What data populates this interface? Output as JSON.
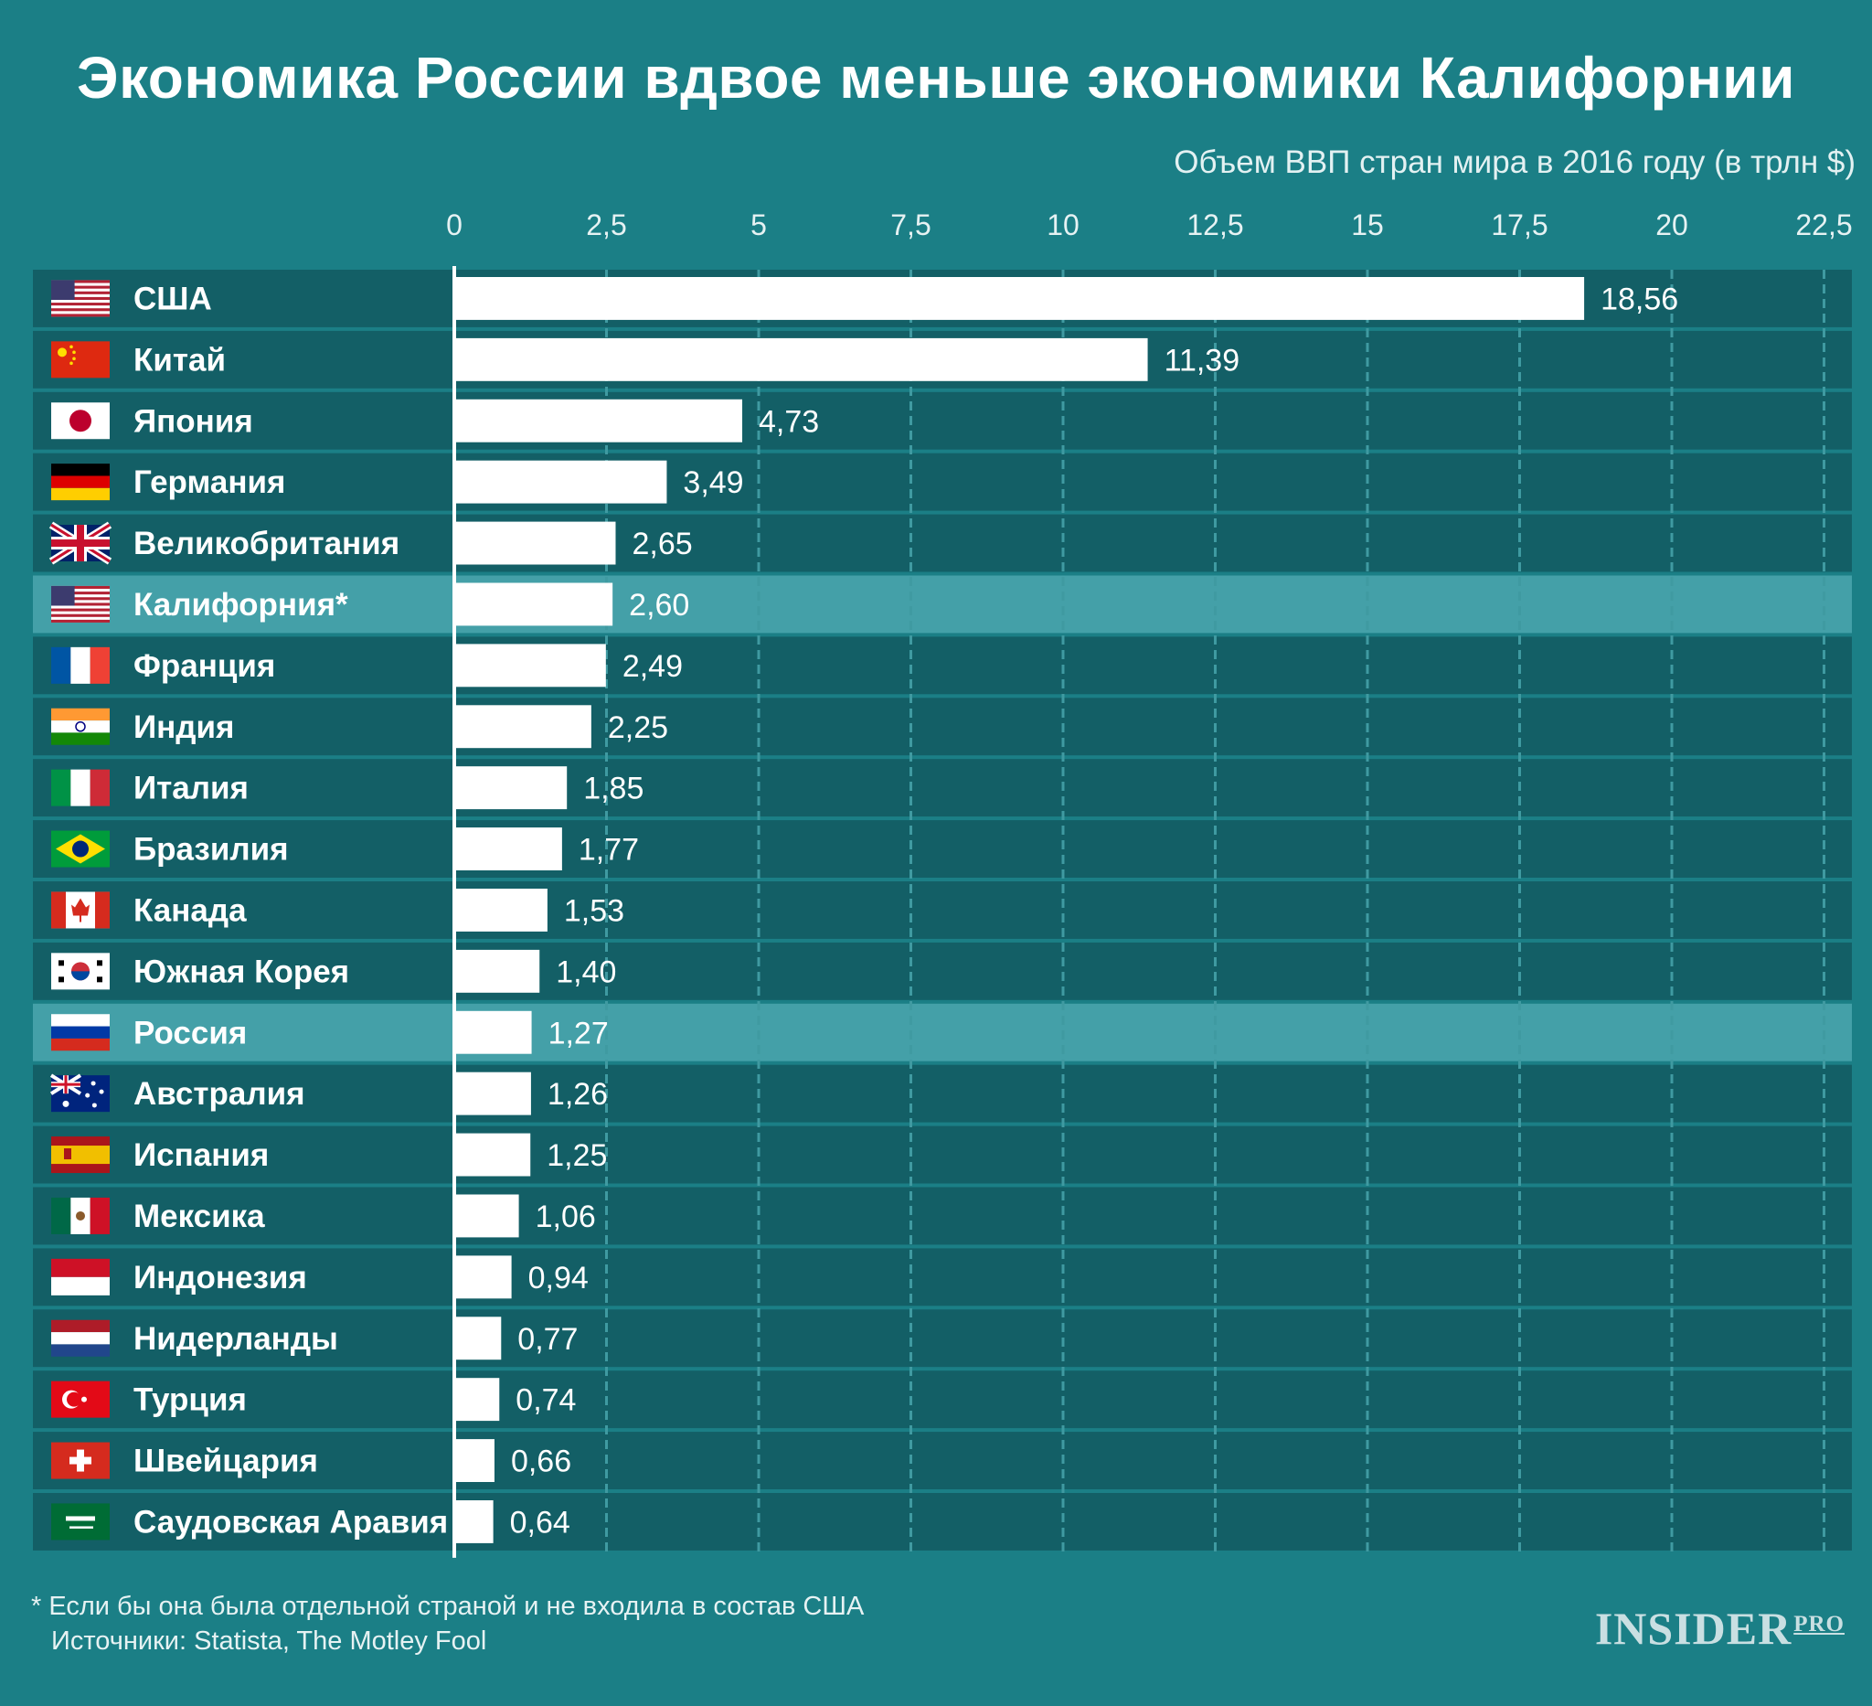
{
  "title": "Экономика России вдвое меньше экономики Калифорнии",
  "subtitle": "Объем ВВП стран мира в 2016 году (в трлн $)",
  "footnote": "* Если бы она была отдельной страной и не входила в состав США",
  "sources": "Источники: Statista, The Motley Fool",
  "logo": {
    "main": "INSIDER",
    "suffix": "PRO"
  },
  "colors": {
    "background": "#1b7f86",
    "row": "#135f66",
    "highlight_row": "#44a0a8",
    "bar": "#ffffff",
    "grid": "#3f9aa1"
  },
  "chart_data": {
    "type": "bar",
    "orientation": "horizontal",
    "xlim": [
      0,
      22.5
    ],
    "ticks": [
      0,
      2.5,
      5,
      7.5,
      10,
      12.5,
      15,
      17.5,
      20,
      22.5
    ],
    "tick_labels": [
      "0",
      "2,5",
      "5",
      "7,5",
      "10",
      "12,5",
      "15",
      "17,5",
      "20",
      "22,5"
    ],
    "grid": true,
    "categories": [
      "США",
      "Китай",
      "Япония",
      "Германия",
      "Великобритания",
      "Калифорния*",
      "Франция",
      "Индия",
      "Италия",
      "Бразилия",
      "Канада",
      "Южная Корея",
      "Россия",
      "Австралия",
      "Испания",
      "Мексика",
      "Индонезия",
      "Нидерланды",
      "Турция",
      "Швейцария",
      "Саудовская Аравия"
    ],
    "values": [
      18.56,
      11.39,
      4.73,
      3.49,
      2.65,
      2.6,
      2.49,
      2.25,
      1.85,
      1.77,
      1.53,
      1.4,
      1.27,
      1.26,
      1.25,
      1.06,
      0.94,
      0.77,
      0.74,
      0.66,
      0.64
    ],
    "value_labels": [
      "18,56",
      "11,39",
      "4,73",
      "3,49",
      "2,65",
      "2,60",
      "2,49",
      "2,25",
      "1,85",
      "1,77",
      "1,53",
      "1,40",
      "1,27",
      "1,26",
      "1,25",
      "1,06",
      "0,94",
      "0,77",
      "0,74",
      "0,66",
      "0,64"
    ],
    "flags": [
      "us-flag-icon",
      "china-flag-icon",
      "japan-flag-icon",
      "germany-flag-icon",
      "uk-flag-icon",
      "us-flag-icon",
      "france-flag-icon",
      "india-flag-icon",
      "italy-flag-icon",
      "brazil-flag-icon",
      "canada-flag-icon",
      "south-korea-flag-icon",
      "russia-flag-icon",
      "australia-flag-icon",
      "spain-flag-icon",
      "mexico-flag-icon",
      "indonesia-flag-icon",
      "netherlands-flag-icon",
      "turkey-flag-icon",
      "switzerland-flag-icon",
      "saudi-arabia-flag-icon"
    ],
    "highlighted": [
      "Калифорния*",
      "Россия"
    ]
  }
}
